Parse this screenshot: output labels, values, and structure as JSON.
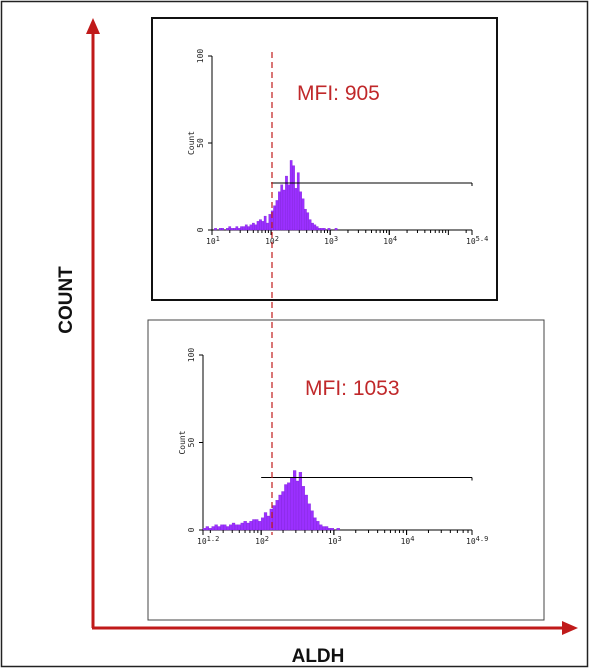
{
  "figure": {
    "x_axis_label": "ALDH",
    "y_axis_label": "COUNT",
    "colors": {
      "axis": "#c01a1a",
      "histogram": "#9b30ff",
      "annotation": "#c0282a",
      "gate": "#000000",
      "threshold": "#c01a1a"
    }
  },
  "chart_data": [
    {
      "type": "histogram",
      "title": "",
      "annotation": "MFI: 905",
      "ylabel": "Count",
      "ylim": [
        0,
        100
      ],
      "yticks": [
        "0",
        "50",
        "100"
      ],
      "xscale": "log",
      "xlim": [
        1.0,
        5.4
      ],
      "xticks": [
        {
          "exp": 1,
          "label": "10",
          "sup": "1"
        },
        {
          "exp": 2,
          "label": "10",
          "sup": "2"
        },
        {
          "exp": 3,
          "label": "10",
          "sup": "3"
        },
        {
          "exp": 4,
          "label": "10",
          "sup": "4"
        },
        {
          "exp": 5.4,
          "label": "10",
          "sup": "5.4"
        }
      ],
      "gate": {
        "x_start": 2.0,
        "x_end": 5.4,
        "y": 27
      },
      "threshold_x": 2.0,
      "bins": {
        "start": 1.0,
        "width": 0.04,
        "counts": [
          0,
          1,
          0,
          1,
          1,
          0,
          1,
          2,
          1,
          1,
          2,
          1,
          2,
          2,
          3,
          2,
          3,
          4,
          3,
          5,
          6,
          5,
          8,
          4,
          9,
          11,
          14,
          17,
          22,
          26,
          23,
          31,
          26,
          40,
          37,
          24,
          33,
          22,
          18,
          12,
          10,
          6,
          4,
          3,
          2,
          1,
          1,
          1,
          0,
          1,
          0,
          0,
          1
        ]
      }
    },
    {
      "type": "histogram",
      "title": "",
      "annotation": "MFI: 1053",
      "ylabel": "Count",
      "ylim": [
        0,
        100
      ],
      "yticks": [
        "0",
        "50",
        "100"
      ],
      "xscale": "log",
      "xlim": [
        1.2,
        4.9
      ],
      "xticks": [
        {
          "exp": 1.2,
          "label": "10",
          "sup": "1.2"
        },
        {
          "exp": 2,
          "label": "10",
          "sup": "2"
        },
        {
          "exp": 3,
          "label": "10",
          "sup": "3"
        },
        {
          "exp": 4,
          "label": "10",
          "sup": "4"
        },
        {
          "exp": 4.9,
          "label": "10",
          "sup": "4.9"
        }
      ],
      "gate": {
        "x_start": 2.0,
        "x_end": 4.9,
        "y": 30
      },
      "threshold_x": 2.0,
      "bins": {
        "start": 1.2,
        "width": 0.04,
        "counts": [
          1,
          2,
          1,
          2,
          3,
          2,
          3,
          3,
          2,
          3,
          4,
          3,
          3,
          4,
          5,
          4,
          5,
          6,
          6,
          5,
          7,
          10,
          8,
          12,
          14,
          17,
          20,
          22,
          26,
          27,
          30,
          34,
          28,
          33,
          25,
          20,
          15,
          11,
          7,
          5,
          3,
          2,
          2,
          1,
          1,
          0,
          1,
          0,
          0,
          0
        ]
      }
    }
  ]
}
